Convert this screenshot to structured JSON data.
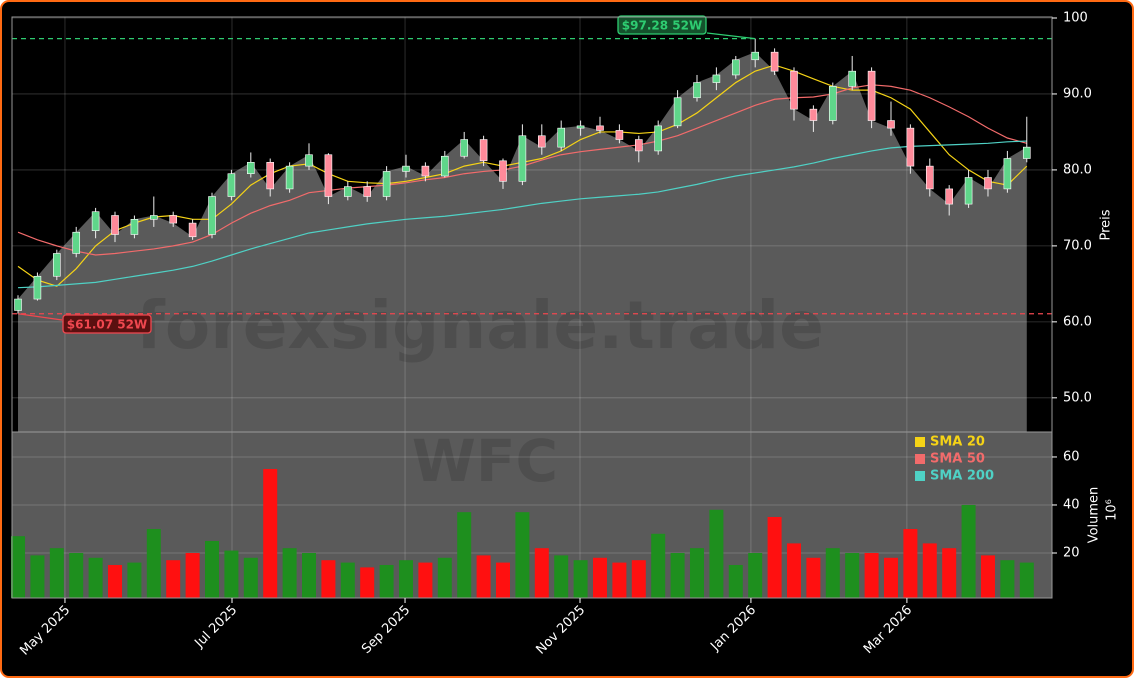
{
  "chart_data": {
    "type": "candlestick",
    "ticker": "WFC",
    "watermark": "forexsignale.trade",
    "y_label": "Preis",
    "volume_label": "Volumen",
    "volume_unit": "10⁶",
    "categories": [
      null,
      null,
      null,
      null,
      null,
      null,
      null,
      null,
      null,
      null,
      null,
      null,
      null,
      null,
      null,
      null,
      null,
      null,
      null,
      null,
      null,
      null,
      null,
      null,
      null,
      null,
      null,
      null,
      null,
      null,
      null,
      null,
      null,
      null,
      null,
      null,
      null,
      null,
      null,
      null,
      null,
      null,
      null,
      null,
      null,
      null,
      null,
      null,
      null,
      null,
      null,
      null,
      null
    ],
    "xlim": [
      -0.31,
      53.3
    ],
    "xticks": [
      {
        "value": 2.42,
        "label": "May 2025"
      },
      {
        "value": 11.03,
        "label": "Jul 2025"
      },
      {
        "value": 19.95,
        "label": "Sep 2025"
      },
      {
        "value": 28.97,
        "label": "Nov 2025"
      },
      {
        "value": 37.78,
        "label": "Jan 2026"
      },
      {
        "value": 45.82,
        "label": "Mar 2026"
      }
    ],
    "open": [
      61.5,
      63,
      66,
      69,
      72,
      74,
      71.5,
      73.5,
      74,
      73,
      71.5,
      76.5,
      79.5,
      81,
      77.5,
      80.5,
      82,
      76.5,
      77.8,
      76.5,
      79.8,
      80.5,
      79.2,
      81.8,
      84,
      81.2,
      78.5,
      84.5,
      83,
      85.5,
      85.8,
      85.2,
      84,
      82.5,
      85.8,
      89.5,
      91.5,
      92.5,
      94.5,
      95.5,
      93,
      88,
      86.5,
      91,
      93,
      86.5,
      85.5,
      80.5,
      77.5,
      75.5,
      79,
      77.5,
      81.5
    ],
    "high": [
      63.5,
      66.5,
      69.5,
      72.5,
      75,
      74.5,
      74,
      76.5,
      74.5,
      73.5,
      77,
      80,
      82.3,
      81.5,
      81,
      83.5,
      82.2,
      78.5,
      78.5,
      80.5,
      82,
      81,
      82.5,
      85,
      84.5,
      81.5,
      86,
      86,
      86.5,
      86.5,
      87,
      86,
      84.5,
      86.5,
      90.5,
      92.5,
      93.5,
      95,
      97.28,
      96,
      93.5,
      88.5,
      91.5,
      95,
      93.5,
      89,
      86,
      81.5,
      78,
      80,
      80,
      82.5,
      87
    ],
    "low": [
      61.07,
      62.8,
      65.5,
      68.5,
      71,
      70.5,
      71,
      72.5,
      72.5,
      70.8,
      71,
      76,
      79,
      76.5,
      77,
      80,
      75.5,
      76,
      75.8,
      76,
      79,
      78.5,
      79,
      81.5,
      80.5,
      77.5,
      78,
      82,
      82.5,
      84.5,
      84.8,
      83.5,
      81,
      82,
      85.5,
      89,
      90.5,
      92,
      93.5,
      92.5,
      86.5,
      85,
      86,
      90.5,
      85.5,
      84.5,
      79.5,
      76.5,
      74,
      75,
      76.5,
      77,
      81
    ],
    "close": [
      63,
      66,
      69,
      71.8,
      74.5,
      71.5,
      73.5,
      74,
      73,
      71.2,
      76.5,
      79.5,
      81,
      77.5,
      80.5,
      82,
      76.5,
      77.8,
      76.5,
      79.8,
      80.5,
      79.2,
      81.8,
      84,
      81.2,
      78.5,
      84.5,
      83,
      85.5,
      85.8,
      85.2,
      84,
      82.5,
      85.8,
      89.5,
      91.5,
      92.5,
      94.5,
      95.5,
      93,
      88,
      86.5,
      91,
      93,
      86.5,
      85.5,
      80.5,
      77.5,
      75.5,
      79,
      77.5,
      81.5,
      83
    ],
    "volume": [
      27,
      19,
      22,
      20,
      18,
      15,
      16,
      30,
      17,
      20,
      25,
      21,
      18,
      55,
      22,
      20,
      17,
      16,
      14,
      15,
      17,
      16,
      18,
      37,
      19,
      16,
      37,
      22,
      19,
      17,
      18,
      16,
      17,
      28,
      20,
      22,
      38,
      15,
      20,
      35,
      24,
      18,
      22,
      20,
      20,
      18,
      30,
      24,
      22,
      40,
      19,
      17,
      16
    ],
    "candle_colors": {
      "up": "#5fd68a",
      "down": "#ff8a9a"
    },
    "volume_colors": {
      "up": "#1e8f1e",
      "down": "#ff1010"
    },
    "area_color": "#5a5a5a",
    "series": [
      {
        "name": "SMA 20",
        "color": "#f5d316",
        "values": [
          67.3,
          65.5,
          64.7,
          67,
          70,
          72,
          73,
          73.8,
          74,
          73.5,
          73.5,
          75.5,
          78,
          79.5,
          80.5,
          80.8,
          79.5,
          78.5,
          78.3,
          78.2,
          78.5,
          79,
          79.5,
          80.5,
          81,
          80.5,
          81,
          81.5,
          82.5,
          84,
          85,
          85,
          84.8,
          85,
          86,
          87.5,
          89.5,
          91.5,
          93,
          93.8,
          93,
          92,
          91,
          90.5,
          90.5,
          89.5,
          88,
          85,
          82,
          80,
          78.5,
          78,
          80.5
        ]
      },
      {
        "name": "SMA 50",
        "color": "#f26b6b",
        "values": [
          71.8,
          70.8,
          70,
          69.3,
          68.8,
          69,
          69.3,
          69.6,
          70,
          70.5,
          71.5,
          73,
          74.3,
          75.3,
          76,
          77,
          77.3,
          77.6,
          77.8,
          78,
          78.3,
          78.7,
          79,
          79.5,
          79.8,
          80,
          80.5,
          81.3,
          82,
          82.4,
          82.7,
          83,
          83.3,
          83.8,
          84.5,
          85.5,
          86.5,
          87.5,
          88.5,
          89.3,
          89.5,
          89.6,
          90,
          90.8,
          91.2,
          91,
          90.5,
          89.5,
          88.3,
          87,
          85.5,
          84.2,
          83.5
        ]
      },
      {
        "name": "SMA 200",
        "color": "#4fd1c5",
        "values": [
          64.5,
          64.6,
          64.8,
          65,
          65.2,
          65.6,
          66,
          66.4,
          66.8,
          67.3,
          68,
          68.8,
          69.6,
          70.3,
          71,
          71.7,
          72.1,
          72.5,
          72.9,
          73.2,
          73.5,
          73.7,
          73.9,
          74.2,
          74.5,
          74.8,
          75.2,
          75.6,
          75.9,
          76.2,
          76.4,
          76.6,
          76.8,
          77.1,
          77.6,
          78.1,
          78.7,
          79.2,
          79.6,
          80,
          80.4,
          80.9,
          81.5,
          82,
          82.5,
          82.9,
          83.1,
          83.2,
          83.3,
          83.4,
          83.5,
          83.7,
          83.8
        ]
      }
    ],
    "ylim": [
      45.5,
      100.13
    ],
    "yticks": [
      {
        "value": 50,
        "label": "50.0"
      },
      {
        "value": 60,
        "label": "60.0"
      },
      {
        "value": 70,
        "label": "70.0"
      },
      {
        "value": 80,
        "label": "80.0"
      },
      {
        "value": 90,
        "label": "90.0"
      },
      {
        "value": 100,
        "label": "100"
      }
    ],
    "volume_ylim": [
      1.25,
      70.4
    ],
    "volume_yticks": [
      20,
      40,
      60
    ],
    "grid": true,
    "high_52w": {
      "value": 97.28,
      "label": "$97.28 52W",
      "index": 38,
      "color": "#2ecc71"
    },
    "low_52w": {
      "value": 61.07,
      "label": "$61.07 52W",
      "index": 0,
      "color": "#f0474f"
    }
  }
}
